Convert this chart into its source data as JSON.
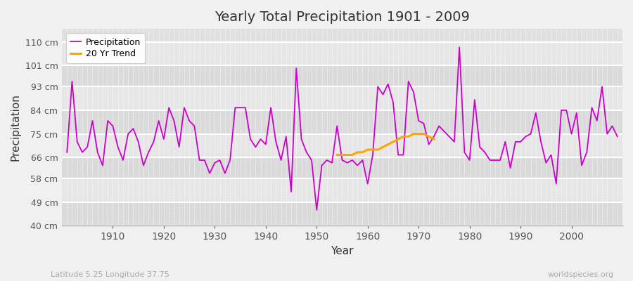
{
  "title": "Yearly Total Precipitation 1901 - 2009",
  "xlabel": "Year",
  "ylabel": "Precipitation",
  "subtitle_lat_lon": "Latitude 5.25 Longitude 37.75",
  "watermark": "worldspecies.org",
  "bg_color": "#f0f0f0",
  "plot_bg_color": "#e0e0e0",
  "band_color_light": "#e8e8e8",
  "band_color_dark": "#d8d8d8",
  "precip_color": "#cc00cc",
  "trend_color": "#ffa500",
  "ylim": [
    40,
    115
  ],
  "yticks": [
    40,
    49,
    58,
    66,
    75,
    84,
    93,
    101,
    110
  ],
  "ytick_labels": [
    "40 cm",
    "49 cm",
    "58 cm",
    "66 cm",
    "75 cm",
    "84 cm",
    "93 cm",
    "101 cm",
    "110 cm"
  ],
  "years": [
    1901,
    1902,
    1903,
    1904,
    1905,
    1906,
    1907,
    1908,
    1909,
    1910,
    1911,
    1912,
    1913,
    1914,
    1915,
    1916,
    1917,
    1918,
    1919,
    1920,
    1921,
    1922,
    1923,
    1924,
    1925,
    1926,
    1927,
    1928,
    1929,
    1930,
    1931,
    1932,
    1933,
    1934,
    1935,
    1936,
    1937,
    1938,
    1939,
    1940,
    1941,
    1942,
    1943,
    1944,
    1945,
    1946,
    1947,
    1948,
    1949,
    1950,
    1951,
    1952,
    1953,
    1954,
    1955,
    1956,
    1957,
    1958,
    1959,
    1960,
    1961,
    1962,
    1963,
    1964,
    1965,
    1966,
    1967,
    1968,
    1969,
    1970,
    1971,
    1972,
    1973,
    1974,
    1975,
    1976,
    1977,
    1978,
    1979,
    1980,
    1981,
    1982,
    1983,
    1984,
    1985,
    1986,
    1987,
    1988,
    1989,
    1990,
    1991,
    1992,
    1993,
    1994,
    1995,
    1996,
    1997,
    1998,
    1999,
    2000,
    2001,
    2002,
    2003,
    2004,
    2005,
    2006,
    2007,
    2008,
    2009
  ],
  "precip": [
    68,
    95,
    72,
    68,
    70,
    80,
    68,
    63,
    80,
    78,
    70,
    65,
    75,
    77,
    72,
    63,
    68,
    72,
    80,
    73,
    85,
    80,
    70,
    85,
    80,
    78,
    65,
    65,
    60,
    64,
    65,
    60,
    65,
    85,
    85,
    85,
    73,
    70,
    73,
    71,
    85,
    72,
    65,
    74,
    53,
    100,
    73,
    68,
    65,
    46,
    63,
    65,
    64,
    78,
    65,
    64,
    65,
    63,
    65,
    56,
    67,
    93,
    90,
    94,
    87,
    67,
    67,
    95,
    91,
    80,
    79,
    71,
    74,
    78,
    76,
    74,
    72,
    108,
    68,
    65,
    88,
    70,
    68,
    65,
    65,
    65,
    72,
    62,
    72,
    72,
    74,
    75,
    83,
    72,
    64,
    67,
    56,
    84,
    84,
    75,
    83,
    63,
    68,
    85,
    80,
    93,
    75,
    78,
    74
  ],
  "trend_years": [
    1954,
    1955,
    1956,
    1957,
    1958,
    1959,
    1960,
    1961,
    1962,
    1963,
    1964,
    1965,
    1966,
    1967,
    1968,
    1969,
    1970,
    1971,
    1972,
    1973
  ],
  "trend_values": [
    67,
    67,
    67,
    67,
    68,
    68,
    69,
    69,
    69,
    70,
    71,
    72,
    73,
    74,
    74,
    75,
    75,
    75,
    74,
    73
  ],
  "xticks": [
    1910,
    1920,
    1930,
    1940,
    1950,
    1960,
    1970,
    1980,
    1990,
    2000
  ],
  "xlim": [
    1900,
    2010
  ]
}
